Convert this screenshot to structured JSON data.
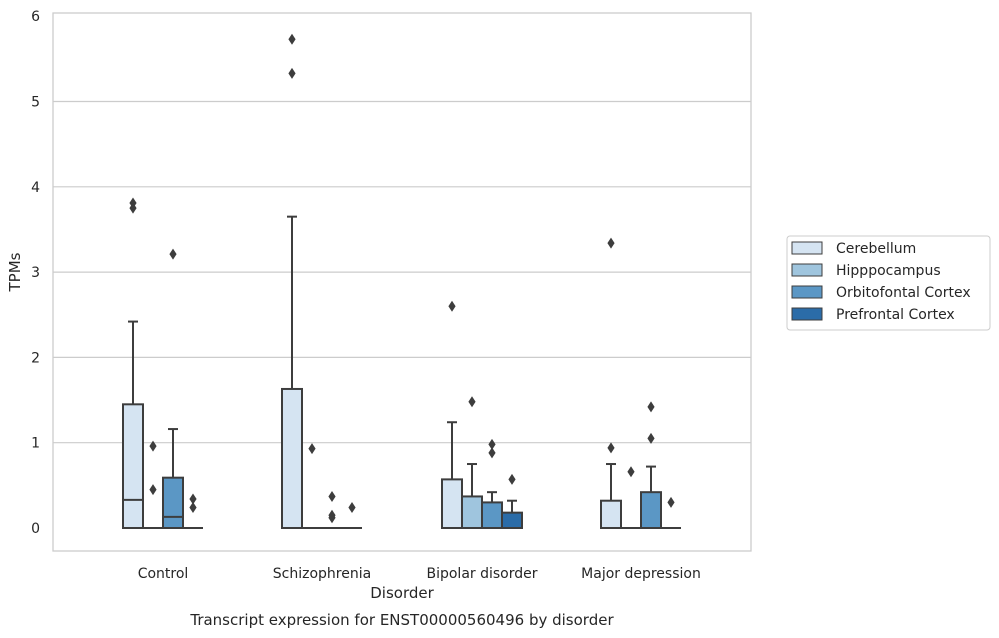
{
  "chart_data": {
    "type": "box",
    "title": "Transcript expression for ENST00000560496 by disorder",
    "xlabel": "Disorder",
    "ylabel": "TPMs",
    "ylim": [
      -0.27,
      6.02
    ],
    "yticks": [
      0,
      1,
      2,
      3,
      4,
      5,
      6
    ],
    "grid": "horizontal",
    "legend_position": "right",
    "categories": [
      "Control",
      "Schizophrenia",
      "Bipolar disorder",
      "Major depression"
    ],
    "series": [
      {
        "name": "Cerebellum",
        "color": "#d5e4f2",
        "boxes": [
          {
            "q1": 0,
            "median": 0.33,
            "q3": 1.45,
            "whisker_low": 0,
            "whisker_high": 2.42,
            "outliers": [
              3.75,
              3.81
            ]
          },
          {
            "q1": 0,
            "median": 0,
            "q3": 1.63,
            "whisker_low": 0,
            "whisker_high": 3.65,
            "outliers": [
              5.33,
              5.73
            ]
          },
          {
            "q1": 0,
            "median": 0,
            "q3": 0.57,
            "whisker_low": 0,
            "whisker_high": 1.24,
            "outliers": [
              2.6
            ]
          },
          {
            "q1": 0,
            "median": 0,
            "q3": 0.32,
            "whisker_low": 0,
            "whisker_high": 0.75,
            "outliers": [
              0.94,
              3.34
            ]
          }
        ]
      },
      {
        "name": "Hipppocampus",
        "color": "#9fc5de",
        "boxes": [
          {
            "q1": 0,
            "median": 0,
            "q3": 0,
            "whisker_low": 0,
            "whisker_high": 0,
            "outliers": [
              0.45,
              0.96
            ]
          },
          {
            "q1": 0,
            "median": 0,
            "q3": 0,
            "whisker_low": 0,
            "whisker_high": 0,
            "outliers": [
              0.93
            ]
          },
          {
            "q1": 0,
            "median": 0,
            "q3": 0.37,
            "whisker_low": 0,
            "whisker_high": 0.75,
            "outliers": [
              1.48
            ]
          },
          {
            "q1": 0,
            "median": 0,
            "q3": 0,
            "whisker_low": 0,
            "whisker_high": 0,
            "outliers": [
              0.66
            ]
          }
        ]
      },
      {
        "name": "Orbitofontal Cortex",
        "color": "#5b97c5",
        "boxes": [
          {
            "q1": 0,
            "median": 0.13,
            "q3": 0.59,
            "whisker_low": 0,
            "whisker_high": 1.16,
            "outliers": [
              3.21
            ]
          },
          {
            "q1": 0,
            "median": 0,
            "q3": 0,
            "whisker_low": 0,
            "whisker_high": 0,
            "outliers": [
              0.12,
              0.15,
              0.37
            ]
          },
          {
            "q1": 0,
            "median": 0,
            "q3": 0.3,
            "whisker_low": 0,
            "whisker_high": 0.42,
            "outliers": [
              0.88,
              0.98
            ]
          },
          {
            "q1": 0,
            "median": 0,
            "q3": 0.42,
            "whisker_low": 0,
            "whisker_high": 0.72,
            "outliers": [
              1.05,
              1.42
            ]
          }
        ]
      },
      {
        "name": "Prefrontal Cortex",
        "color": "#2b6ca8",
        "boxes": [
          {
            "q1": 0,
            "median": 0,
            "q3": 0,
            "whisker_low": 0,
            "whisker_high": 0,
            "outliers": [
              0.24,
              0.34
            ]
          },
          {
            "q1": 0,
            "median": 0,
            "q3": 0,
            "whisker_low": 0,
            "whisker_high": 0,
            "outliers": [
              0.24
            ]
          },
          {
            "q1": 0,
            "median": 0,
            "q3": 0.18,
            "whisker_low": 0,
            "whisker_high": 0.32,
            "outliers": [
              0.57
            ]
          },
          {
            "q1": 0,
            "median": 0,
            "q3": 0,
            "whisker_low": 0,
            "whisker_high": 0,
            "outliers": [
              0.3
            ]
          }
        ]
      }
    ]
  }
}
